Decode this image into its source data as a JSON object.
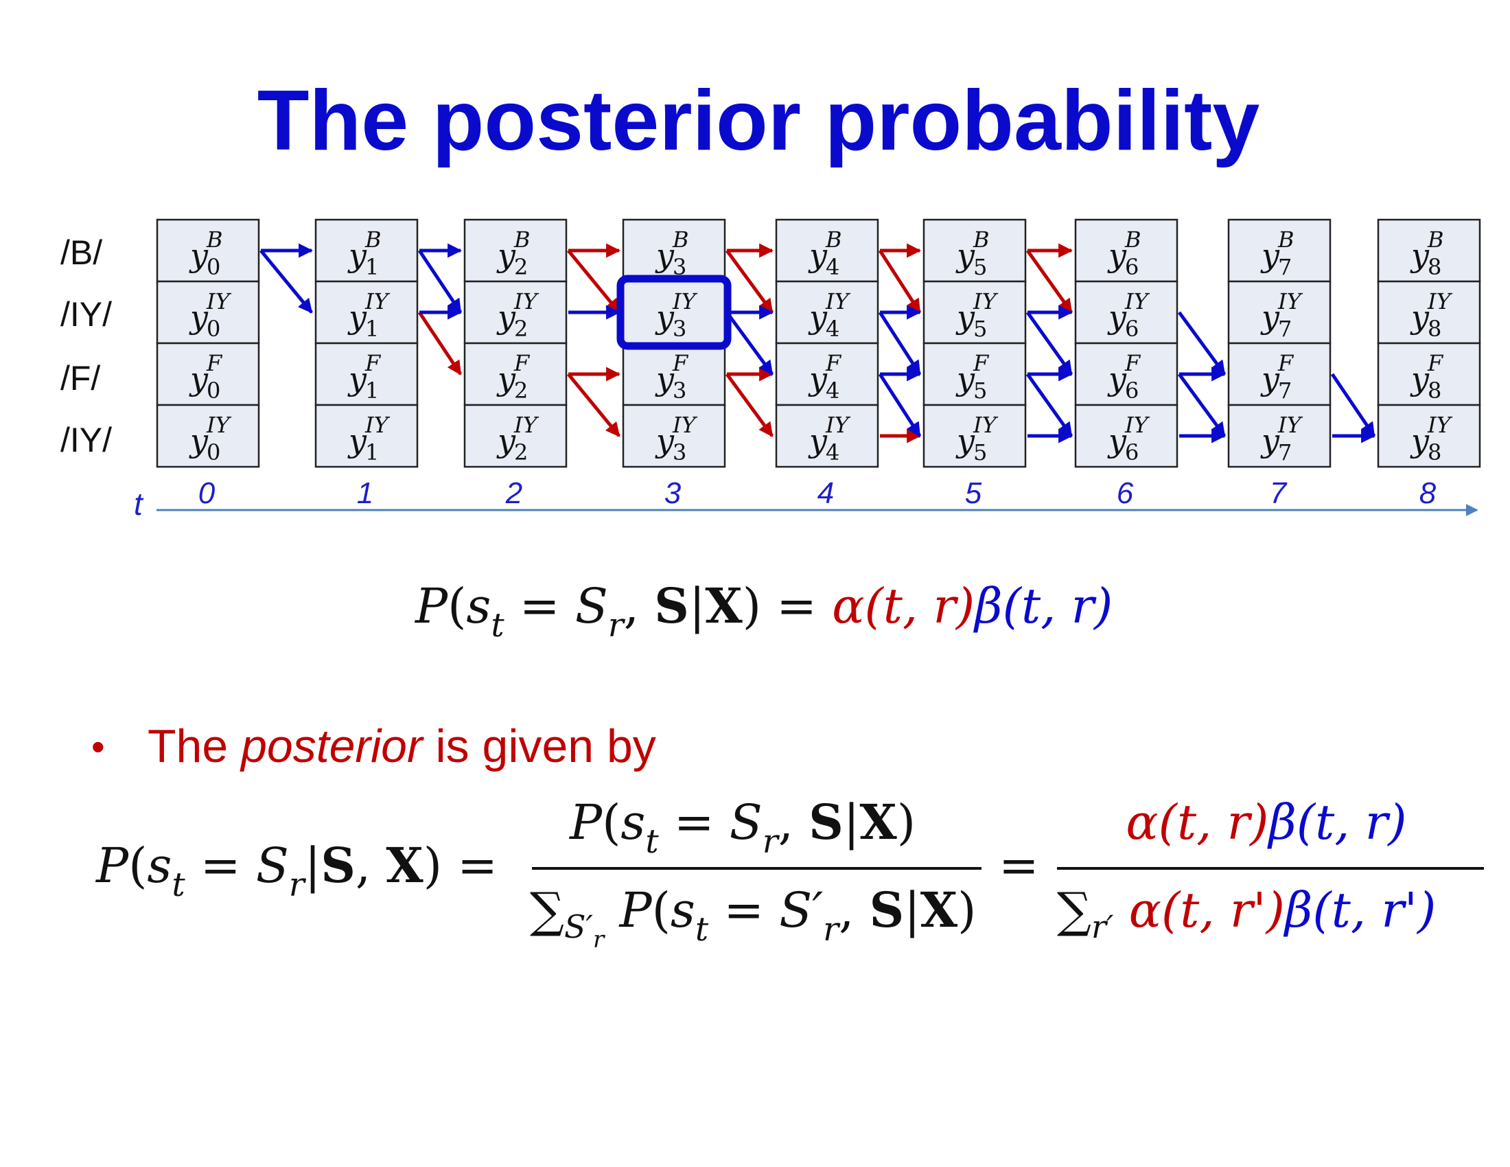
{
  "title": "The posterior probability",
  "colors": {
    "title": "#0A0ACD",
    "red": "#C00000",
    "blue": "#0A0ACD",
    "axis": "#4F81BD",
    "axis_text": "#1E1EC8",
    "cell_fill": "#E8ECF4",
    "cell_border": "#222222",
    "text": "#111111"
  },
  "diagram": {
    "row_labels": [
      "/B/",
      "/IY/",
      "/F/",
      "/IY/"
    ],
    "row_superscripts": [
      "B",
      "IY",
      "F",
      "IY"
    ],
    "time_steps": [
      "0",
      "1",
      "2",
      "3",
      "4",
      "5",
      "6",
      "7",
      "8"
    ],
    "axis_label": "t",
    "cell_symbol": "y",
    "highlight": {
      "t": 3,
      "row": 1
    },
    "red_arrows": [
      [
        2,
        0,
        3,
        0
      ],
      [
        2,
        0,
        3,
        1
      ],
      [
        1,
        1,
        2,
        2
      ],
      [
        2,
        2,
        3,
        2
      ],
      [
        2,
        2,
        3,
        3
      ],
      [
        3,
        0,
        4,
        0
      ],
      [
        3,
        0,
        4,
        1
      ],
      [
        3,
        2,
        4,
        2
      ],
      [
        3,
        2,
        4,
        3
      ],
      [
        4,
        0,
        5,
        0
      ],
      [
        4,
        0,
        5,
        1
      ],
      [
        4,
        3,
        5,
        3
      ],
      [
        5,
        0,
        6,
        0
      ],
      [
        5,
        0,
        6,
        1
      ]
    ],
    "blue_arrows": [
      [
        0,
        0,
        1,
        0
      ],
      [
        0,
        0,
        1,
        1
      ],
      [
        1,
        0,
        2,
        0
      ],
      [
        1,
        0,
        2,
        1
      ],
      [
        1,
        1,
        2,
        1
      ],
      [
        2,
        1,
        3,
        1
      ],
      [
        3,
        1,
        4,
        1
      ],
      [
        3,
        1,
        4,
        2
      ],
      [
        4,
        1,
        5,
        1
      ],
      [
        4,
        1,
        5,
        2
      ],
      [
        4,
        2,
        5,
        2
      ],
      [
        4,
        2,
        5,
        3
      ],
      [
        5,
        1,
        6,
        1
      ],
      [
        5,
        1,
        6,
        2
      ],
      [
        5,
        2,
        6,
        2
      ],
      [
        5,
        2,
        6,
        3
      ],
      [
        5,
        3,
        6,
        3
      ],
      [
        6,
        1,
        7,
        2
      ],
      [
        6,
        2,
        7,
        2
      ],
      [
        6,
        2,
        7,
        3
      ],
      [
        6,
        3,
        7,
        3
      ],
      [
        7,
        2,
        8,
        3
      ],
      [
        7,
        3,
        8,
        3
      ]
    ]
  },
  "equation1": {
    "lhs": "P(s_t = S_r, S|X) =",
    "alpha": "α(t, r)",
    "beta": "β(t, r)"
  },
  "bullet": {
    "prefix": "The ",
    "emphasis": "posterior",
    "suffix": " is given by"
  },
  "equation2": {
    "lhs": "P(s_t = S_r|S, X) =",
    "num1": "P(s_t = S_r, S|X)",
    "den1": "∑_{S'_r} P(s_t = S'_r, S|X)",
    "eq": "=",
    "num2_alpha": "α(t, r)",
    "num2_beta": "β(t, r)",
    "den2_sum": "∑_{r'}",
    "den2_alpha": "α(t, r')",
    "den2_beta": "β(t, r')"
  }
}
